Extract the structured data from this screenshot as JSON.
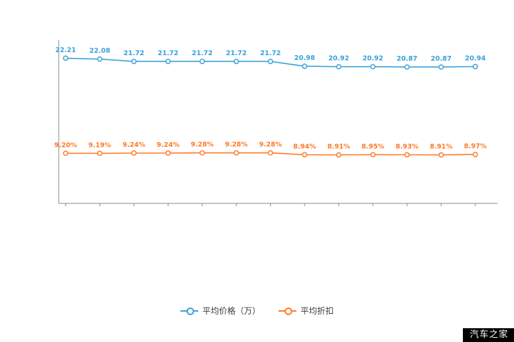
{
  "chart_data": {
    "type": "line",
    "title": "",
    "xlabel": "",
    "ylabel": "",
    "grid": false,
    "legend_position": "bottom",
    "x_labels_visible": false,
    "series": [
      {
        "name": "平均价格（万）",
        "color": "#3ba0dc",
        "label_suffix": "",
        "axis": {
          "min": 0,
          "max": 25
        },
        "values": [
          22.21,
          22.08,
          21.72,
          21.72,
          21.72,
          21.72,
          21.72,
          20.98,
          20.92,
          20.92,
          20.87,
          20.87,
          20.94
        ]
      },
      {
        "name": "平均折扣",
        "color": "#ff7a28",
        "label_suffix": "%",
        "axis": {
          "min": 0,
          "max": 30
        },
        "values": [
          9.2,
          9.19,
          9.24,
          9.24,
          9.28,
          9.28,
          9.28,
          8.94,
          8.91,
          8.95,
          8.93,
          8.91,
          8.97
        ]
      }
    ]
  },
  "watermark": {
    "text": "汽车之家",
    "bg": "#000000",
    "fg": "#ffffff"
  }
}
